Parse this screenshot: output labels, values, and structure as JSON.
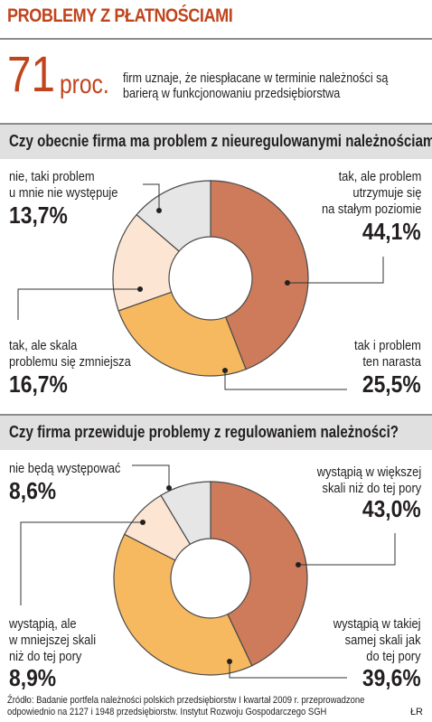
{
  "header": {
    "title": "PROBLEMY Z PŁATNOŚCIAMI",
    "big_number": "71",
    "big_unit": "proc.",
    "lead": "firm uznaje, że niespłacane w terminie należności są barierą w funkcjonowaniu przedsiębiorstwa"
  },
  "colors": {
    "accent": "#c0441c",
    "band": "#e0e0e0"
  },
  "chart_data": [
    {
      "type": "pie",
      "donut": true,
      "title": "Czy obecnie firma ma problem z nieuregulowanymi należnościami?",
      "slices": [
        {
          "label_lines": [
            "tak, ale problem",
            "utrzymuje się",
            "na stałym poziomie"
          ],
          "value": 44.1,
          "display": "44,1%",
          "color": "#cd7b5a"
        },
        {
          "label_lines": [
            "tak i problem",
            "ten narasta"
          ],
          "value": 25.5,
          "display": "25,5%",
          "color": "#f7b95f"
        },
        {
          "label_lines": [
            "tak, ale skala",
            "problemu się zmniejsza"
          ],
          "value": 16.7,
          "display": "16,7%",
          "color": "#fce5d2"
        },
        {
          "label_lines": [
            "nie, taki problem",
            "u mnie nie występuje"
          ],
          "value": 13.7,
          "display": "13,7%",
          "color": "#e6e6e6"
        }
      ]
    },
    {
      "type": "pie",
      "donut": true,
      "title": "Czy firma przewiduje problemy z regulowaniem należności?",
      "slices": [
        {
          "label_lines": [
            "wystąpią w większej",
            "skali niż do tej pory"
          ],
          "value": 43.0,
          "display": "43,0%",
          "color": "#cd7b5a"
        },
        {
          "label_lines": [
            "wystąpią w takiej",
            "samej skali jak",
            "do tej pory"
          ],
          "value": 39.6,
          "display": "39,6%",
          "color": "#f7b95f"
        },
        {
          "label_lines": [
            "wystąpią, ale",
            "w mniejszej skali",
            "niż do tej pory"
          ],
          "value": 8.9,
          "display": "8,9%",
          "color": "#fce5d2"
        },
        {
          "label_lines": [
            "nie będą występować"
          ],
          "value": 8.6,
          "display": "8,6%",
          "color": "#e6e6e6"
        }
      ]
    }
  ],
  "footer": {
    "source": "Źródło: Badanie portfela należności polskich przedsiębiorstw I kwartał 2009 r. przeprowadzone odpowiednio na 2127 i 1948 przedsiębiorstw. Instytut Rozwoju Gospodarczego SGH",
    "signature": "ŁR"
  }
}
